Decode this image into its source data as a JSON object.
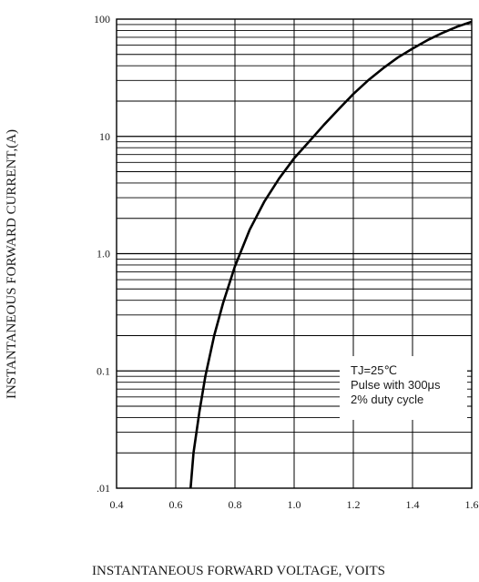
{
  "chart_data": {
    "type": "line",
    "xlabel": "INSTANTANEOUS FORWARD VOLTAGE, VOITS",
    "ylabel": "INSTANTANEOUS FORWARD CURRENT,(A)",
    "xlim": [
      0.4,
      1.6
    ],
    "ylim": [
      0.01,
      100
    ],
    "y_scale": "log",
    "grid": true,
    "x_ticks": [
      "0.4",
      "0.6",
      "0.8",
      "1.0",
      "1.2",
      "1.4",
      "1.6"
    ],
    "y_ticks": [
      {
        "value": 100,
        "label": "100"
      },
      {
        "value": 10,
        "label": "10"
      },
      {
        "value": 1,
        "label": "1.0"
      },
      {
        "value": 0.1,
        "label": "0.1"
      },
      {
        "value": 0.01,
        "label": ".01"
      }
    ],
    "series": [
      {
        "x": [
          0.65,
          0.66,
          0.68,
          0.7,
          0.73,
          0.76,
          0.8,
          0.85,
          0.9,
          0.95,
          1.0,
          1.05,
          1.1,
          1.15,
          1.2,
          1.25,
          1.3,
          1.35,
          1.4,
          1.45,
          1.5,
          1.55,
          1.6
        ],
        "y": [
          0.01,
          0.02,
          0.045,
          0.09,
          0.2,
          0.38,
          0.78,
          1.6,
          2.8,
          4.4,
          6.5,
          9.0,
          12.5,
          17.0,
          23.0,
          30.0,
          38.0,
          47.0,
          56.0,
          66.0,
          76.0,
          86.0,
          95.0
        ],
        "color": "#000000"
      }
    ],
    "annotation": {
      "lines": [
        "TJ=25℃",
        "Pulse with 300μs",
        "2% duty cycle"
      ]
    }
  }
}
